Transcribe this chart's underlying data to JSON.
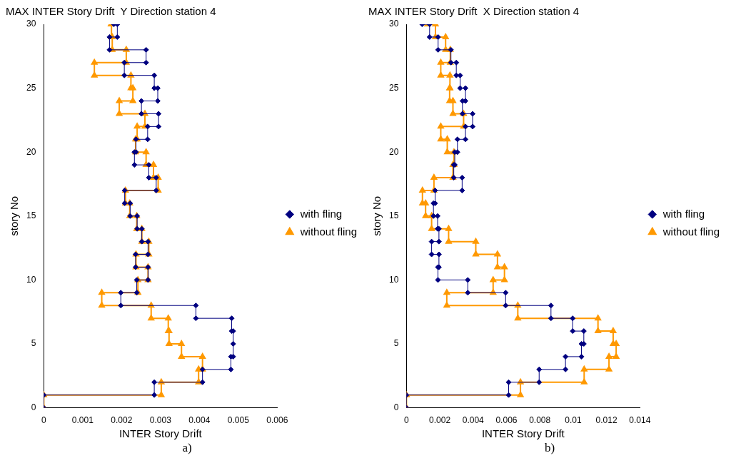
{
  "chart_data": [
    {
      "type": "line",
      "title": "MAX INTER Story Drift  Y Direction station 4",
      "xlabel": "INTER Story Drift",
      "ylabel": "story No",
      "annotations": [
        "a)"
      ],
      "xlim": [
        0,
        0.006
      ],
      "xticks": [
        0,
        0.001,
        0.002,
        0.003,
        0.004,
        0.005,
        0.006
      ],
      "ylim": [
        0,
        30
      ],
      "yticks": [
        0,
        5,
        10,
        15,
        20,
        25,
        30
      ],
      "grid": false,
      "legend": "right",
      "series": [
        {
          "name": "with fling",
          "color": "#000080",
          "marker": "diamond",
          "x": [
            0,
            0,
            0.00284,
            0.00284,
            0.00408,
            0.00408,
            0.00481,
            0.00481,
            0.00487,
            0.00487,
            0.00487,
            0.00483,
            0.00483,
            0.00391,
            0.00391,
            0.00198,
            0.00198,
            0.00239,
            0.00239,
            0.00268,
            0.00268,
            0.00236,
            0.00236,
            0.00268,
            0.00268,
            0.00252,
            0.00252,
            0.0024,
            0.0024,
            0.00222,
            0.00222,
            0.00208,
            0.00208,
            0.00289,
            0.00289,
            0.0027,
            0.0027,
            0.00233,
            0.00233,
            0.00237,
            0.00237,
            0.00267,
            0.00267,
            0.00295,
            0.00295,
            0.00251,
            0.00251,
            0.00293,
            0.00293,
            0.00284,
            0.00284,
            0.00207,
            0.00207,
            0.00263,
            0.00263,
            0.00169,
            0.00169,
            0.00189,
            0.00189,
            0.0018
          ],
          "values": [
            0,
            1,
            1,
            2,
            2,
            3,
            3,
            4,
            4,
            5,
            6,
            6,
            7,
            7,
            8,
            8,
            9,
            9,
            10,
            10,
            11,
            11,
            12,
            12,
            13,
            13,
            14,
            14,
            15,
            15,
            16,
            16,
            17,
            17,
            18,
            18,
            19,
            19,
            20,
            20,
            21,
            21,
            22,
            22,
            23,
            23,
            24,
            24,
            25,
            25,
            26,
            26,
            27,
            27,
            28,
            28,
            29,
            29,
            30,
            30
          ]
        },
        {
          "name": "without fling",
          "color": "#ff9900",
          "marker": "triangle",
          "x": [
            0,
            0,
            0.00302,
            0.00302,
            0.00398,
            0.00398,
            0.00408,
            0.00408,
            0.00354,
            0.00354,
            0.00322,
            0.00322,
            0.0032,
            0.0032,
            0.00276,
            0.00276,
            0.00149,
            0.00149,
            0.00242,
            0.00242,
            0.00268,
            0.00268,
            0.00237,
            0.00237,
            0.0027,
            0.0027,
            0.00252,
            0.00252,
            0.00239,
            0.00239,
            0.00221,
            0.00221,
            0.0021,
            0.0021,
            0.00294,
            0.00294,
            0.00282,
            0.00282,
            0.00263,
            0.00263,
            0.00236,
            0.00236,
            0.0024,
            0.0024,
            0.0026,
            0.0026,
            0.00194,
            0.00194,
            0.00229,
            0.00229,
            0.00224,
            0.00224,
            0.0013,
            0.0013,
            0.00212,
            0.00212,
            0.00176,
            0.00176,
            0.00174,
            0.00174,
            0.00173
          ],
          "values": [
            0,
            1,
            1,
            2,
            2,
            3,
            3,
            4,
            4,
            5,
            5,
            6,
            6,
            7,
            7,
            8,
            8,
            9,
            9,
            10,
            10,
            11,
            11,
            12,
            12,
            13,
            13,
            14,
            14,
            15,
            15,
            16,
            16,
            17,
            17,
            18,
            18,
            19,
            19,
            20,
            20,
            21,
            21,
            22,
            22,
            23,
            23,
            24,
            24,
            25,
            25,
            26,
            26,
            27,
            27,
            28,
            28,
            29,
            29,
            30,
            30
          ]
        }
      ]
    },
    {
      "type": "line",
      "title": "MAX INTER Story Drift  X Direction station 4",
      "xlabel": "INTER Story Drift",
      "ylabel": "story No",
      "annotations": [
        "b)"
      ],
      "xlim": [
        0,
        0.014
      ],
      "xticks": [
        0,
        0.002,
        0.004,
        0.006,
        0.008,
        0.01,
        0.012,
        0.014
      ],
      "ylim": [
        0,
        30
      ],
      "yticks": [
        0,
        5,
        10,
        15,
        20,
        25,
        30
      ],
      "grid": false,
      "legend": "right",
      "series": [
        {
          "name": "with fling",
          "color": "#000080",
          "marker": "diamond",
          "x": [
            0,
            0,
            0.00613,
            0.00613,
            0.00796,
            0.00796,
            0.00954,
            0.00954,
            0.0105,
            0.0105,
            0.01064,
            0.01064,
            0.00997,
            0.00997,
            0.00867,
            0.00867,
            0.00595,
            0.00595,
            0.00368,
            0.00368,
            0.00189,
            0.00189,
            0.00195,
            0.00195,
            0.00151,
            0.00151,
            0.00195,
            0.00195,
            0.00187,
            0.00187,
            0.00162,
            0.00162,
            0.00172,
            0.00172,
            0.00334,
            0.00334,
            0.00284,
            0.00284,
            0.0029,
            0.0029,
            0.00306,
            0.00306,
            0.00354,
            0.00354,
            0.00397,
            0.00397,
            0.00336,
            0.00336,
            0.00354,
            0.00354,
            0.00322,
            0.00322,
            0.00299,
            0.00299,
            0.00267,
            0.00267,
            0.0019,
            0.0019,
            0.00139,
            0.00139,
            0.00094
          ],
          "values": [
            0,
            1,
            1,
            2,
            2,
            3,
            3,
            4,
            4,
            5,
            5,
            6,
            6,
            7,
            7,
            8,
            8,
            9,
            9,
            10,
            10,
            11,
            11,
            12,
            12,
            13,
            13,
            14,
            14,
            15,
            15,
            16,
            16,
            17,
            17,
            18,
            18,
            19,
            19,
            20,
            20,
            21,
            21,
            22,
            22,
            23,
            23,
            24,
            24,
            25,
            25,
            26,
            26,
            27,
            27,
            28,
            28,
            29,
            29,
            30,
            30
          ]
        },
        {
          "name": "without fling",
          "color": "#ff9900",
          "marker": "triangle",
          "x": [
            0,
            0,
            0.00684,
            0.00684,
            0.01066,
            0.01066,
            0.01215,
            0.01215,
            0.01258,
            0.01258,
            0.0124,
            0.0124,
            0.01149,
            0.01149,
            0.00668,
            0.00668,
            0.00242,
            0.00242,
            0.0052,
            0.0052,
            0.00588,
            0.00588,
            0.00546,
            0.00546,
            0.00416,
            0.00416,
            0.00253,
            0.00253,
            0.00151,
            0.00151,
            0.00115,
            0.00115,
            0.00096,
            0.00096,
            0.00165,
            0.00165,
            0.00279,
            0.00279,
            0.00285,
            0.00285,
            0.00245,
            0.00245,
            0.00206,
            0.00206,
            0.00343,
            0.00343,
            0.00279,
            0.00279,
            0.00259,
            0.00259,
            0.00261,
            0.00261,
            0.00206,
            0.00206,
            0.00263,
            0.00263,
            0.00235,
            0.00235,
            0.00174,
            0.00174,
            0.00126
          ],
          "values": [
            0,
            1,
            1,
            2,
            2,
            3,
            3,
            4,
            4,
            5,
            5,
            6,
            6,
            7,
            7,
            8,
            8,
            9,
            9,
            10,
            10,
            11,
            11,
            12,
            12,
            13,
            13,
            14,
            14,
            15,
            15,
            16,
            16,
            17,
            17,
            18,
            18,
            19,
            19,
            20,
            20,
            21,
            21,
            22,
            22,
            23,
            23,
            24,
            24,
            25,
            25,
            26,
            26,
            27,
            27,
            28,
            28,
            29,
            29,
            30,
            30
          ]
        }
      ]
    }
  ]
}
